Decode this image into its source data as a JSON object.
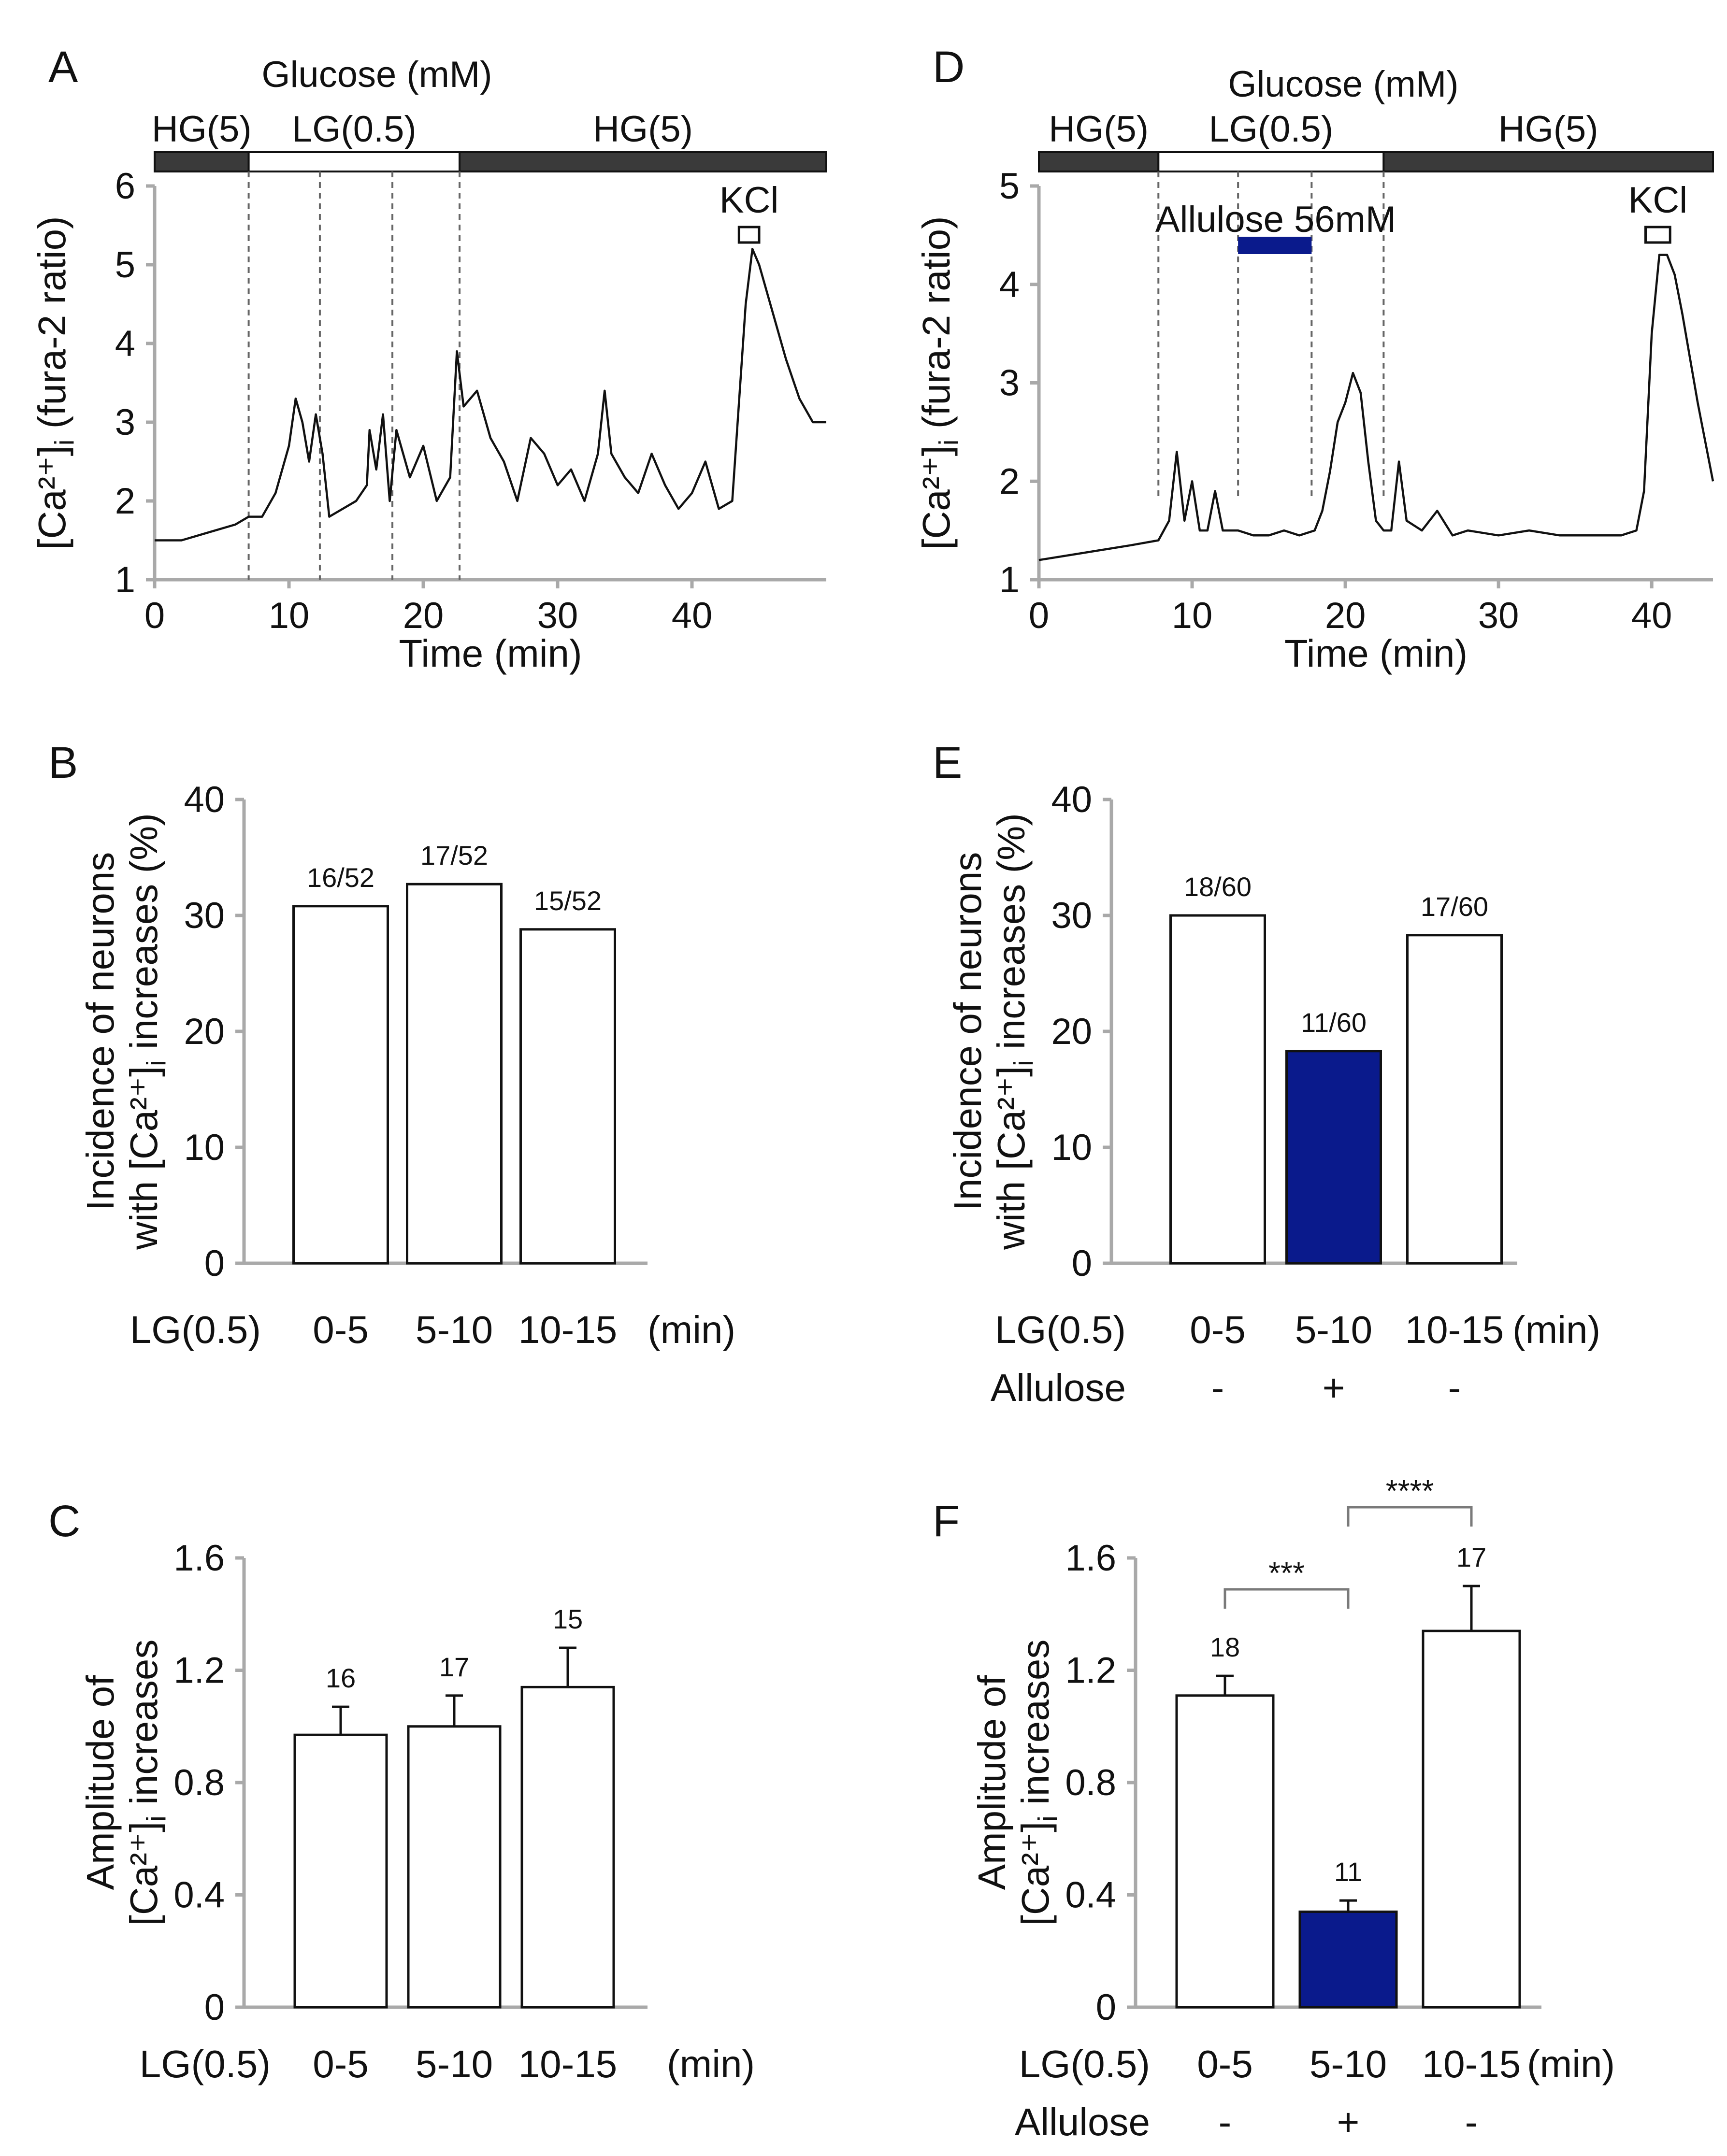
{
  "colors": {
    "allulose": "#0a1a8c",
    "dark_bar": "#3a3a3a",
    "axis": "#a9a9a9",
    "plus_sign": "#1a3bdb"
  },
  "panels": {
    "A": {
      "letter": "A",
      "glucose_title": "Glucose (mM)",
      "segments": [
        {
          "label": "HG(5)",
          "start": 0,
          "end": 7,
          "fill": "dark"
        },
        {
          "label": "LG(0.5)",
          "start": 7,
          "end": 22.7,
          "fill": "white"
        },
        {
          "label": "HG(5)",
          "start": 22.7,
          "end": 50,
          "fill": "dark"
        }
      ],
      "kcl_label": "KCl",
      "kcl_range": [
        43.5,
        45
      ],
      "dashed_lines_at": [
        7,
        12.3,
        17.7,
        22.7
      ]
    },
    "D": {
      "letter": "D",
      "glucose_title": "Glucose (mM)",
      "segments": [
        {
          "label": "HG(5)",
          "start": 0,
          "end": 7.8,
          "fill": "dark"
        },
        {
          "label": "LG(0.5)",
          "start": 7.8,
          "end": 22.5,
          "fill": "white"
        },
        {
          "label": "HG(5)",
          "start": 22.5,
          "end": 44,
          "fill": "dark"
        }
      ],
      "allulose_label": "Allulose 56mM",
      "allulose_range": [
        13,
        17.8
      ],
      "kcl_label": "KCl",
      "kcl_range": [
        39.6,
        41.2
      ],
      "dashed_lines_at": [
        7.8,
        13,
        17.8,
        22.5
      ]
    },
    "B": {
      "letter": "B",
      "row_label": "LG(0.5)",
      "unit_label": "(min)"
    },
    "C": {
      "letter": "C",
      "row_label": "LG(0.5)",
      "unit_label": "(min)"
    },
    "E": {
      "letter": "E",
      "row_label": "LG(0.5)",
      "unit_label": "(min)",
      "allulose_row_label": "Allulose",
      "allulose_signs": [
        "-",
        "+",
        "-"
      ]
    },
    "F": {
      "letter": "F",
      "row_label": "LG(0.5)",
      "unit_label": "(min)",
      "allulose_row_label": "Allulose",
      "allulose_signs": [
        "-",
        "+",
        "-"
      ],
      "significance": [
        {
          "from": 0,
          "to": 1,
          "label": "***"
        },
        {
          "from": 1,
          "to": 2,
          "label": "****"
        }
      ]
    }
  },
  "chart_data": [
    {
      "id": "A",
      "type": "line",
      "xlabel": "Time (min)",
      "ylabel": "[Ca²⁺]i (fura-2 ratio)",
      "xlim": [
        0,
        50
      ],
      "ylim": [
        1,
        6
      ],
      "xticks": [
        "0",
        "10",
        "20",
        "30",
        "40"
      ],
      "yticks": [
        "1",
        "2",
        "3",
        "4",
        "5",
        "6"
      ],
      "series": [
        {
          "name": "[Ca2+]i",
          "x": [
            0,
            2,
            4,
            6,
            7,
            8,
            9,
            10,
            10.5,
            11,
            11.5,
            12,
            12.5,
            13,
            14,
            15,
            15.8,
            16,
            16.5,
            17,
            17.5,
            18,
            19,
            20,
            21,
            22,
            22.5,
            23,
            24,
            25,
            26,
            27,
            28,
            29,
            30,
            31,
            32,
            33,
            33.5,
            34,
            35,
            36,
            37,
            38,
            39,
            40,
            41,
            42,
            43,
            44,
            44.5,
            45,
            45.5,
            46,
            47,
            48,
            49,
            50
          ],
          "y": [
            1.5,
            1.5,
            1.6,
            1.7,
            1.8,
            1.8,
            2.1,
            2.7,
            3.3,
            3.0,
            2.5,
            3.1,
            2.6,
            1.8,
            1.9,
            2.0,
            2.2,
            2.9,
            2.4,
            3.1,
            2.0,
            2.9,
            2.3,
            2.7,
            2.0,
            2.3,
            3.9,
            3.2,
            3.4,
            2.8,
            2.5,
            2.0,
            2.8,
            2.6,
            2.2,
            2.4,
            2.0,
            2.6,
            3.4,
            2.6,
            2.3,
            2.1,
            2.6,
            2.2,
            1.9,
            2.1,
            2.5,
            1.9,
            2.0,
            4.5,
            5.2,
            5.0,
            4.7,
            4.4,
            3.8,
            3.3,
            3.0,
            3.0
          ]
        }
      ]
    },
    {
      "id": "D",
      "type": "line",
      "xlabel": "Time (min)",
      "ylabel": "[Ca²⁺]i (fura-2 ratio)",
      "xlim": [
        0,
        44
      ],
      "ylim": [
        1,
        5
      ],
      "xticks": [
        "0",
        "10",
        "20",
        "30",
        "40"
      ],
      "yticks": [
        "1",
        "2",
        "3",
        "4",
        "5"
      ],
      "series": [
        {
          "name": "[Ca2+]i",
          "x": [
            0,
            2,
            4,
            6,
            7.8,
            8.5,
            9,
            9.5,
            10,
            10.5,
            11,
            11.5,
            12,
            12.5,
            13,
            14,
            15,
            16,
            17,
            18,
            18.5,
            19,
            19.5,
            20,
            20.5,
            21,
            21.5,
            22,
            22.5,
            23,
            23.5,
            24,
            25,
            26,
            27,
            28,
            30,
            32,
            34,
            36,
            38,
            39,
            39.5,
            40,
            40.5,
            41,
            41.5,
            42,
            43,
            44
          ],
          "y": [
            1.2,
            1.25,
            1.3,
            1.35,
            1.4,
            1.6,
            2.3,
            1.6,
            2.0,
            1.5,
            1.5,
            1.9,
            1.5,
            1.5,
            1.5,
            1.45,
            1.45,
            1.5,
            1.45,
            1.5,
            1.7,
            2.1,
            2.6,
            2.8,
            3.1,
            2.9,
            2.2,
            1.6,
            1.5,
            1.5,
            2.2,
            1.6,
            1.5,
            1.7,
            1.45,
            1.5,
            1.45,
            1.5,
            1.45,
            1.45,
            1.45,
            1.5,
            1.9,
            3.5,
            4.3,
            4.3,
            4.1,
            3.7,
            2.8,
            2.0
          ]
        }
      ]
    },
    {
      "id": "B",
      "type": "bar",
      "ylabel_lines": [
        "Incidence of neurons",
        "with [Ca²⁺]i increases (%)"
      ],
      "categories": [
        "0-5",
        "5-10",
        "10-15"
      ],
      "values": [
        30.8,
        32.7,
        28.8
      ],
      "bar_labels": [
        "16/52",
        "17/52",
        "15/52"
      ],
      "ylim": [
        0,
        40
      ],
      "yticks": [
        "0",
        "10",
        "20",
        "30",
        "40"
      ],
      "bar_fill": [
        "white",
        "white",
        "white"
      ]
    },
    {
      "id": "C",
      "type": "bar",
      "ylabel_lines": [
        "Amplitude of",
        "[Ca²⁺]i increases"
      ],
      "categories": [
        "0-5",
        "5-10",
        "10-15"
      ],
      "values": [
        0.97,
        1.0,
        1.14
      ],
      "errors": [
        0.1,
        0.11,
        0.14
      ],
      "bar_labels": [
        "16",
        "17",
        "15"
      ],
      "ylim": [
        0,
        1.6
      ],
      "yticks": [
        "0",
        "0.4",
        "0.8",
        "1.2",
        "1.6"
      ],
      "bar_fill": [
        "white",
        "white",
        "white"
      ]
    },
    {
      "id": "E",
      "type": "bar",
      "ylabel_lines": [
        "Incidence of neurons",
        "with [Ca²⁺]i increases (%)"
      ],
      "categories": [
        "0-5",
        "5-10",
        "10-15"
      ],
      "values": [
        30.0,
        18.3,
        28.3
      ],
      "bar_labels": [
        "18/60",
        "11/60",
        "17/60"
      ],
      "ylim": [
        0,
        40
      ],
      "yticks": [
        "0",
        "10",
        "20",
        "30",
        "40"
      ],
      "bar_fill": [
        "white",
        "blue",
        "white"
      ]
    },
    {
      "id": "F",
      "type": "bar",
      "ylabel_lines": [
        "Amplitude of",
        "[Ca²⁺]i increases"
      ],
      "categories": [
        "0-5",
        "5-10",
        "10-15"
      ],
      "values": [
        1.11,
        0.34,
        1.34
      ],
      "errors": [
        0.07,
        0.04,
        0.16
      ],
      "bar_labels": [
        "18",
        "11",
        "17"
      ],
      "ylim": [
        0,
        1.6
      ],
      "yticks": [
        "0",
        "0.4",
        "0.8",
        "1.2",
        "1.6"
      ],
      "bar_fill": [
        "white",
        "blue",
        "white"
      ]
    }
  ]
}
